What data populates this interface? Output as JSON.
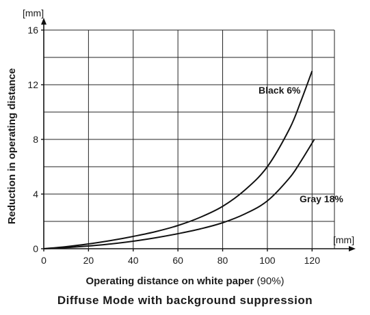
{
  "chart_data": {
    "type": "line",
    "x_unit": "[mm]",
    "y_unit": "[mm]",
    "ylabel": "Reduction in operating distance",
    "xlabel_main": "Operating distance on white paper",
    "xlabel_suffix": " (90%)",
    "caption": "Diffuse Mode with background suppression",
    "xlim": [
      0,
      130
    ],
    "ylim": [
      0,
      16
    ],
    "x_ticks": [
      0,
      20,
      40,
      60,
      80,
      100,
      120
    ],
    "y_ticks": [
      0,
      4,
      8,
      12,
      16
    ],
    "grid": true,
    "series": [
      {
        "name": "Black 6%",
        "points": [
          [
            0,
            0
          ],
          [
            10,
            0.15
          ],
          [
            20,
            0.35
          ],
          [
            30,
            0.6
          ],
          [
            40,
            0.9
          ],
          [
            50,
            1.25
          ],
          [
            60,
            1.7
          ],
          [
            70,
            2.3
          ],
          [
            80,
            3.1
          ],
          [
            90,
            4.3
          ],
          [
            100,
            6.0
          ],
          [
            110,
            8.8
          ],
          [
            115,
            10.8
          ],
          [
            120,
            13
          ]
        ]
      },
      {
        "name": "Gray 18%",
        "points": [
          [
            0,
            0
          ],
          [
            10,
            0.08
          ],
          [
            20,
            0.2
          ],
          [
            30,
            0.35
          ],
          [
            40,
            0.55
          ],
          [
            50,
            0.8
          ],
          [
            60,
            1.1
          ],
          [
            70,
            1.45
          ],
          [
            80,
            1.9
          ],
          [
            90,
            2.55
          ],
          [
            100,
            3.5
          ],
          [
            110,
            5.2
          ],
          [
            115,
            6.4
          ],
          [
            121,
            8
          ]
        ]
      }
    ]
  }
}
